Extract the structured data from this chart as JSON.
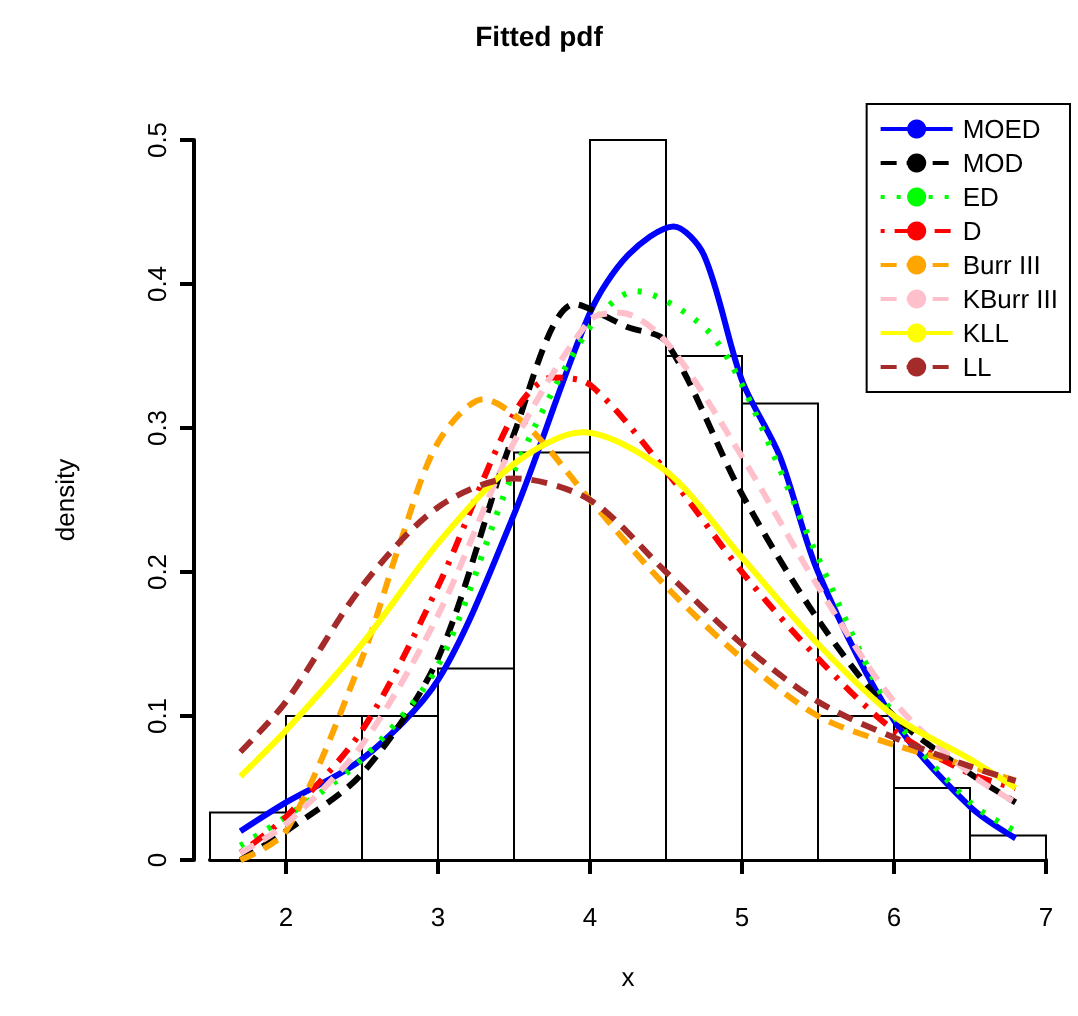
{
  "chart_data": {
    "type": "histogram",
    "title": "Fitted pdf",
    "xlabel": "x",
    "ylabel": "density",
    "bins": [
      1.5,
      2,
      2.5,
      3,
      3.5,
      4,
      4.5,
      5,
      5.5,
      6,
      6.5,
      7
    ],
    "values": [
      0.033,
      0.1,
      0.1,
      0.133,
      0.283,
      0.5,
      0.35,
      0.317,
      0.1,
      0.05,
      0.017
    ],
    "color": "#ffffff",
    "xlim": [
      1.5,
      7
    ],
    "xticks": [
      2,
      3,
      4,
      5,
      6,
      7
    ],
    "ylim": [
      0,
      0.5
    ],
    "yticks": [
      0,
      0.1,
      0.2,
      0.3,
      0.4,
      0.5
    ],
    "grid": false,
    "legend": "top right",
    "series": [
      {
        "name": "MOED",
        "type": "line",
        "color": "#0000ff",
        "line_style": "solid",
        "x": [
          1.7,
          2,
          2.5,
          3,
          3.5,
          4,
          4.25,
          4.55,
          4.75,
          5,
          5.25,
          5.5,
          6,
          6.5,
          6.8
        ],
        "values": [
          0.02,
          0.04,
          0.07,
          0.125,
          0.24,
          0.38,
          0.42,
          0.44,
          0.42,
          0.333,
          0.28,
          0.2,
          0.097,
          0.037,
          0.015
        ]
      },
      {
        "name": "MOD",
        "type": "line",
        "color": "#000000",
        "line_style": "dashed",
        "x": [
          1.7,
          2,
          2.5,
          3,
          3.5,
          3.9,
          4.25,
          4.5,
          5,
          5.5,
          6,
          6.5,
          6.8
        ],
        "values": [
          0.0,
          0.02,
          0.06,
          0.14,
          0.296,
          0.386,
          0.37,
          0.36,
          0.254,
          0.167,
          0.1,
          0.06,
          0.04
        ]
      },
      {
        "name": "ED",
        "type": "line",
        "color": "#00ff00",
        "line_style": "dotted",
        "x": [
          1.7,
          2,
          2.5,
          3,
          3.5,
          4,
          4.3,
          4.75,
          5,
          5.5,
          6,
          6.5,
          6.8
        ],
        "values": [
          0.01,
          0.03,
          0.07,
          0.135,
          0.27,
          0.37,
          0.395,
          0.37,
          0.33,
          0.21,
          0.1,
          0.04,
          0.02
        ]
      },
      {
        "name": "D",
        "type": "line",
        "color": "#ff0000",
        "line_style": "dashdot",
        "x": [
          1.7,
          2,
          2.5,
          3,
          3.5,
          3.75,
          4,
          4.5,
          5,
          5.5,
          6,
          6.5,
          6.8
        ],
        "values": [
          0.005,
          0.03,
          0.09,
          0.19,
          0.31,
          0.335,
          0.33,
          0.27,
          0.2,
          0.14,
          0.09,
          0.06,
          0.05
        ]
      },
      {
        "name": "Burr III",
        "type": "line",
        "color": "#ffa500",
        "line_style": "dashed",
        "x": [
          1.7,
          2,
          2.5,
          2.75,
          3,
          3.3,
          3.6,
          4,
          4.5,
          5,
          5.5,
          6,
          6.5,
          6.8
        ],
        "values": [
          0.0,
          0.02,
          0.14,
          0.22,
          0.29,
          0.32,
          0.3,
          0.25,
          0.19,
          0.14,
          0.1,
          0.08,
          0.065,
          0.055
        ]
      },
      {
        "name": "KBurr III",
        "type": "line",
        "color": "#ffc0cb",
        "line_style": "dashed",
        "x": [
          1.7,
          2,
          2.5,
          3,
          3.5,
          4,
          4.2,
          4.5,
          5,
          5.5,
          6,
          6.5,
          6.8
        ],
        "values": [
          0.005,
          0.025,
          0.08,
          0.17,
          0.29,
          0.375,
          0.38,
          0.36,
          0.28,
          0.19,
          0.11,
          0.06,
          0.04
        ]
      },
      {
        "name": "KLL",
        "type": "line",
        "color": "#ffff00",
        "line_style": "solid",
        "x": [
          1.7,
          2,
          2.5,
          3,
          3.5,
          3.95,
          4.5,
          5,
          5.5,
          6,
          6.5,
          6.8
        ],
        "values": [
          0.058,
          0.09,
          0.15,
          0.22,
          0.275,
          0.297,
          0.27,
          0.21,
          0.15,
          0.1,
          0.07,
          0.05
        ]
      },
      {
        "name": "LL",
        "type": "line",
        "color": "#a52a2a",
        "line_style": "dashed",
        "x": [
          1.7,
          2,
          2.5,
          3,
          3.5,
          4,
          4.5,
          5,
          5.5,
          6,
          6.5,
          6.8
        ],
        "values": [
          0.075,
          0.11,
          0.19,
          0.245,
          0.265,
          0.25,
          0.2,
          0.15,
          0.11,
          0.085,
          0.065,
          0.055
        ]
      }
    ]
  }
}
